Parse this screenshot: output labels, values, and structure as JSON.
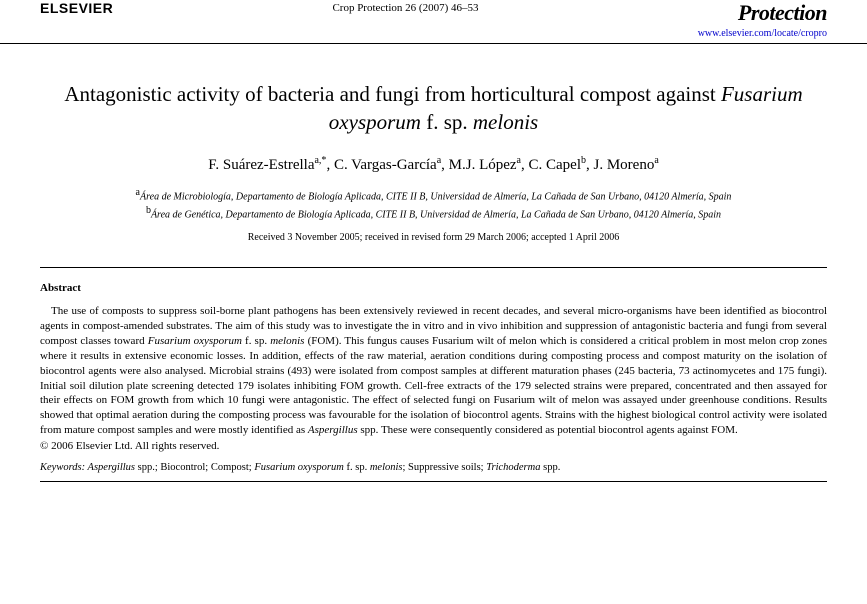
{
  "header": {
    "publisher": "ELSEVIER",
    "journal_ref": "Crop Protection 26 (2007) 46–53",
    "journal_logo": "Protection",
    "journal_url": "www.elsevier.com/locate/cropro"
  },
  "title": {
    "pre": "Antagonistic activity of bacteria and fungi from horticultural compost against ",
    "italic1": "Fusarium oxysporum",
    "mid": " f. sp. ",
    "italic2": "melonis"
  },
  "authors": {
    "a1": "F. Suárez-Estrella",
    "a1sup": "a,*",
    "a2": ", C. Vargas-García",
    "a2sup": "a",
    "a3": ", M.J. López",
    "a3sup": "a",
    "a4": ", C. Capel",
    "a4sup": "b",
    "a5": ", J. Moreno",
    "a5sup": "a"
  },
  "affiliations": {
    "a": "Área de Microbiología, Departamento de Biología Aplicada, CITE II B, Universidad de Almería, La Cañada de San Urbano, 04120 Almería, Spain",
    "b": "Área de Genética, Departamento de Biología Aplicada, CITE II B, Universidad de Almería, La Cañada de San Urbano, 04120 Almería, Spain"
  },
  "dates": "Received 3 November 2005; received in revised form 29 March 2006; accepted 1 April 2006",
  "abstract": {
    "heading": "Abstract",
    "p1a": "The use of composts to suppress soil-borne plant pathogens has been extensively reviewed in recent decades, and several micro-organisms have been identified as biocontrol agents in compost-amended substrates. The aim of this study was to investigate the in vitro and in vivo inhibition and suppression of antagonistic bacteria and fungi from several compost classes toward ",
    "p1i1": "Fusarium oxysporum",
    "p1b": " f. sp. ",
    "p1i2": "melonis",
    "p1c": " (FOM). This fungus causes Fusarium wilt of melon which is considered a critical problem in most melon crop zones where it results in extensive economic losses. In addition, effects of the raw material, aeration conditions during composting process and compost maturity on the isolation of biocontrol agents were also analysed. Microbial strains (493) were isolated from compost samples at different maturation phases (245 bacteria, 73 actinomycetes and 175 fungi). Initial soil dilution plate screening detected 179 isolates inhibiting FOM growth. Cell-free extracts of the 179 selected strains were prepared, concentrated and then assayed for their effects on FOM growth from which 10 fungi were antagonistic. The effect of selected fungi on Fusarium wilt of melon was assayed under greenhouse conditions. Results showed that optimal aeration during the composting process was favourable for the isolation of biocontrol agents. Strains with the highest biological control activity were isolated from mature compost samples and were mostly identified as ",
    "p1i3": "Aspergillus",
    "p1d": " spp. These were consequently considered as potential biocontrol agents against FOM.",
    "copyright": "© 2006 Elsevier Ltd. All rights reserved."
  },
  "keywords": {
    "label": "Keywords: ",
    "k1i": "Aspergillus",
    "k1": " spp.; Biocontrol; Compost; ",
    "k2i": "Fusarium oxysporum",
    "k2": " f. sp. ",
    "k3i": "melonis",
    "k3": "; Suppressive soils; ",
    "k4i": "Trichoderma",
    "k4": " spp."
  }
}
